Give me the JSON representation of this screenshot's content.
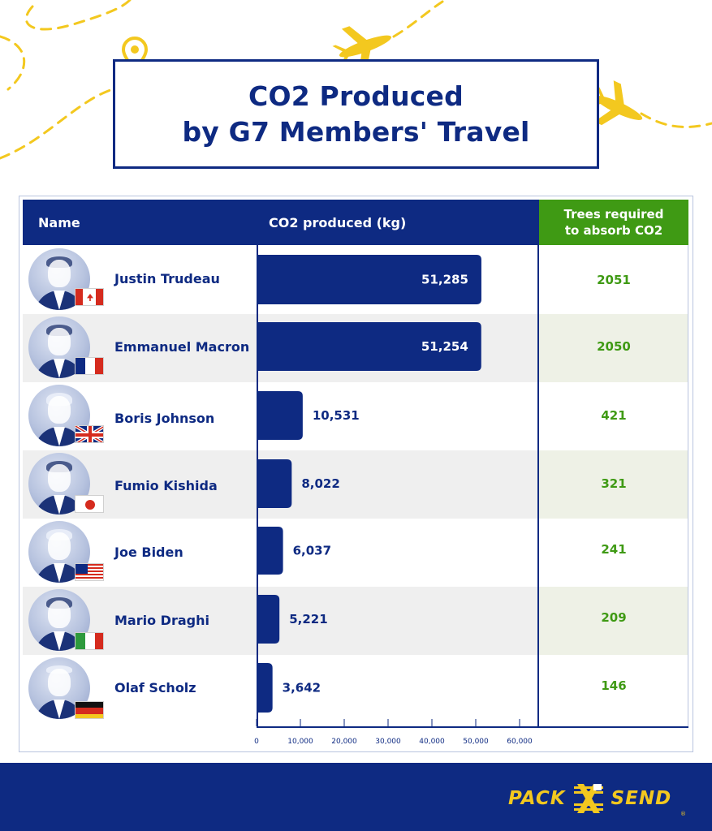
{
  "title": {
    "line1": "CO2 Produced",
    "line2": "by G7 Members' Travel"
  },
  "headers": {
    "name": "Name",
    "co2": "CO2 produced (kg)",
    "trees_line1": "Trees required",
    "trees_line2": "to absorb CO2"
  },
  "rows": [
    {
      "name": "Justin Trudeau",
      "flag": "canada-flag",
      "co2_label": "51,285",
      "trees": "2051"
    },
    {
      "name": "Emmanuel Macron",
      "flag": "france-flag",
      "co2_label": "51,254",
      "trees": "2050"
    },
    {
      "name": "Boris Johnson",
      "flag": "uk-flag",
      "co2_label": "10,531",
      "trees": "421"
    },
    {
      "name": "Fumio Kishida",
      "flag": "japan-flag",
      "co2_label": "8,022",
      "trees": "321"
    },
    {
      "name": "Joe Biden",
      "flag": "usa-flag",
      "co2_label": "6,037",
      "trees": "241"
    },
    {
      "name": "Mario Draghi",
      "flag": "italy-flag",
      "co2_label": "5,221",
      "trees": "209"
    },
    {
      "name": "Olaf Scholz",
      "flag": "germany-flag",
      "co2_label": "3,642",
      "trees": "146"
    }
  ],
  "chart_data": {
    "type": "bar",
    "orientation": "horizontal",
    "title": "CO2 Produced by G7 Members' Travel",
    "xlabel": "CO2 produced (kg)",
    "categories": [
      "Justin Trudeau",
      "Emmanuel Macron",
      "Boris Johnson",
      "Fumio Kishida",
      "Joe Biden",
      "Mario Draghi",
      "Olaf Scholz"
    ],
    "values": [
      51285,
      51254,
      10531,
      8022,
      6037,
      5221,
      3642
    ],
    "trees_required": [
      2051,
      2050,
      421,
      321,
      241,
      209,
      146
    ],
    "xlim": [
      0,
      60000
    ],
    "xticks": [
      0,
      10000,
      20000,
      30000,
      40000,
      50000,
      60000
    ],
    "xtick_labels": [
      "0",
      "10,000",
      "20,000",
      "30,000",
      "40,000",
      "50,000",
      "60,000"
    ],
    "grid": false,
    "colors": {
      "bar": "#0e2a82",
      "header": "#0e2a82",
      "trees_header": "#3f9a14",
      "trees_text": "#3f9a14",
      "label_inside": "#ffffff",
      "label_outside": "#0e2a82"
    }
  },
  "footer": {
    "logo_left": "PACK",
    "logo_right": "SEND",
    "logo_reg": "®"
  }
}
